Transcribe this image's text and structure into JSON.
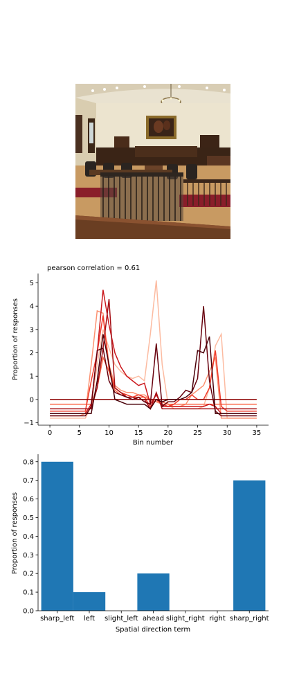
{
  "photo": {
    "icon": "courtroom-photo"
  },
  "chart_data": [
    {
      "type": "line",
      "title": "pearson correlation = 0.61",
      "xlabel": "Bin number",
      "ylabel": "Proportion of responses",
      "xlim": [
        -2,
        37
      ],
      "ylim": [
        -1.1,
        5.4
      ],
      "xticks": [
        0,
        5,
        10,
        15,
        20,
        25,
        30,
        35
      ],
      "yticks": [
        -1,
        0,
        1,
        2,
        3,
        4,
        5
      ],
      "grid": false,
      "legend": "none",
      "x": [
        0,
        1,
        2,
        3,
        4,
        5,
        6,
        7,
        8,
        9,
        10,
        11,
        12,
        13,
        14,
        15,
        16,
        17,
        18,
        19,
        20,
        21,
        22,
        23,
        24,
        25,
        26,
        27,
        28,
        29,
        30,
        31,
        32,
        33,
        34,
        35
      ],
      "series": [
        {
          "color": "#fcbba1",
          "values": [
            -0.8,
            -0.8,
            -0.8,
            -0.8,
            -0.8,
            -0.8,
            -0.8,
            -0.3,
            1.5,
            3.0,
            2.2,
            1.5,
            1.2,
            1.0,
            0.9,
            1.0,
            0.8,
            2.8,
            5.1,
            1.5,
            -0.2,
            -0.4,
            -0.4,
            -0.4,
            -0.4,
            -0.4,
            -0.3,
            0.5,
            2.3,
            2.8,
            -0.8,
            -0.8,
            -0.8,
            -0.8,
            -0.8,
            -0.8
          ]
        },
        {
          "color": "#fc9272",
          "values": [
            -0.7,
            -0.7,
            -0.7,
            -0.7,
            -0.7,
            -0.7,
            -0.6,
            1.5,
            3.8,
            3.7,
            1.5,
            0.6,
            0.4,
            0.3,
            0.3,
            0.2,
            0.2,
            0.0,
            -0.1,
            -0.2,
            -0.2,
            -0.3,
            -0.3,
            -0.2,
            0.2,
            0.4,
            0.6,
            1.2,
            1.8,
            -0.8,
            -0.8,
            -0.8,
            -0.8,
            -0.8,
            -0.8,
            -0.8
          ]
        },
        {
          "color": "#fb6a4a",
          "values": [
            -0.2,
            -0.2,
            -0.2,
            -0.2,
            -0.2,
            -0.2,
            -0.2,
            -0.2,
            0.5,
            1.8,
            1.2,
            0.4,
            0.2,
            0.2,
            0.1,
            0.1,
            0.1,
            0.0,
            -0.1,
            -0.1,
            -0.2,
            -0.2,
            -0.2,
            -0.2,
            -0.2,
            -0.2,
            -0.2,
            -0.2,
            -0.2,
            -0.2,
            -0.2,
            -0.2,
            -0.2,
            -0.2,
            -0.2,
            -0.2
          ]
        },
        {
          "color": "#ef3b2c",
          "values": [
            -0.5,
            -0.5,
            -0.5,
            -0.5,
            -0.5,
            -0.5,
            -0.5,
            0.8,
            2.0,
            3.6,
            1.3,
            0.5,
            0.3,
            0.2,
            0.1,
            0.2,
            0.1,
            -0.3,
            0.0,
            -0.2,
            -0.3,
            -0.2,
            0.0,
            0.0,
            0.2,
            0.0,
            0.0,
            0.5,
            2.1,
            -0.3,
            -0.5,
            -0.5,
            -0.5,
            -0.5,
            -0.5,
            -0.5
          ]
        },
        {
          "color": "#cb181d",
          "values": [
            -0.6,
            -0.6,
            -0.6,
            -0.6,
            -0.6,
            -0.6,
            -0.6,
            -0.2,
            2.0,
            4.7,
            3.2,
            2.0,
            1.4,
            1.0,
            0.8,
            0.6,
            0.7,
            -0.2,
            0.2,
            -0.3,
            -0.3,
            -0.3,
            -0.3,
            -0.3,
            -0.3,
            -0.3,
            -0.3,
            -0.2,
            -0.3,
            -0.6,
            -0.6,
            -0.6,
            -0.6,
            -0.6,
            -0.6,
            -0.6
          ]
        },
        {
          "color": "#a50f15",
          "values": [
            -0.4,
            -0.4,
            -0.4,
            -0.4,
            -0.4,
            -0.4,
            -0.4,
            -0.4,
            0.5,
            2.2,
            4.3,
            0.5,
            0.3,
            0.1,
            0.1,
            0.0,
            0.0,
            -0.4,
            0.3,
            -0.4,
            -0.4,
            -0.4,
            -0.4,
            -0.4,
            -0.4,
            -0.4,
            -0.4,
            -0.4,
            -0.4,
            -0.4,
            -0.4,
            -0.4,
            -0.4,
            -0.4,
            -0.4,
            -0.4
          ]
        },
        {
          "color": "#8b0000",
          "values": [
            0.0,
            0.0,
            0.0,
            0.0,
            0.0,
            0.0,
            0.0,
            0.0,
            0.0,
            0.0,
            0.0,
            0.0,
            0.0,
            0.0,
            0.0,
            0.0,
            0.0,
            0.0,
            0.0,
            0.0,
            0.0,
            0.0,
            0.0,
            0.0,
            0.0,
            0.0,
            0.0,
            0.0,
            0.0,
            0.0,
            0.0,
            0.0,
            0.0,
            0.0,
            0.0,
            0.0
          ]
        },
        {
          "color": "#67000d",
          "values": [
            -0.7,
            -0.7,
            -0.7,
            -0.7,
            -0.7,
            -0.7,
            -0.7,
            -0.3,
            2.1,
            2.2,
            0.8,
            0.3,
            0.2,
            0.1,
            0.0,
            0.1,
            -0.1,
            -0.2,
            2.4,
            -0.3,
            -0.1,
            -0.1,
            0.1,
            0.4,
            0.3,
            0.9,
            4.0,
            0.8,
            -0.5,
            -0.7,
            -0.7,
            -0.7,
            -0.7,
            -0.7,
            -0.7,
            -0.7
          ]
        },
        {
          "color": "#4a0009",
          "values": [
            -0.6,
            -0.6,
            -0.6,
            -0.6,
            -0.6,
            -0.6,
            -0.6,
            -0.6,
            0.8,
            2.8,
            1.5,
            0.0,
            -0.1,
            -0.2,
            -0.2,
            -0.2,
            -0.2,
            -0.4,
            0.0,
            -0.1,
            0.0,
            0.0,
            0.0,
            0.1,
            0.3,
            2.1,
            2.0,
            2.7,
            -0.6,
            -0.6,
            -0.6,
            -0.6,
            -0.6,
            -0.6,
            -0.6,
            -0.6
          ]
        }
      ]
    },
    {
      "type": "bar",
      "xlabel": "Spatial direction term",
      "ylabel": "Proportion of responses",
      "ylim": [
        0,
        0.84
      ],
      "yticks": [
        0.0,
        0.1,
        0.2,
        0.3,
        0.4,
        0.5,
        0.6,
        0.7,
        0.8
      ],
      "ytick_labels": [
        "0.0",
        "0.1",
        "0.2",
        "0.3",
        "0.4",
        "0.5",
        "0.6",
        "0.7",
        "0.8"
      ],
      "categories": [
        "sharp_left",
        "left",
        "slight_left",
        "ahead",
        "slight_right",
        "right",
        "sharp_right"
      ],
      "values": [
        0.8,
        0.1,
        0.0,
        0.2,
        0.0,
        0.0,
        0.7
      ],
      "color": "#1f77b4",
      "grid": false,
      "legend": "none"
    }
  ]
}
